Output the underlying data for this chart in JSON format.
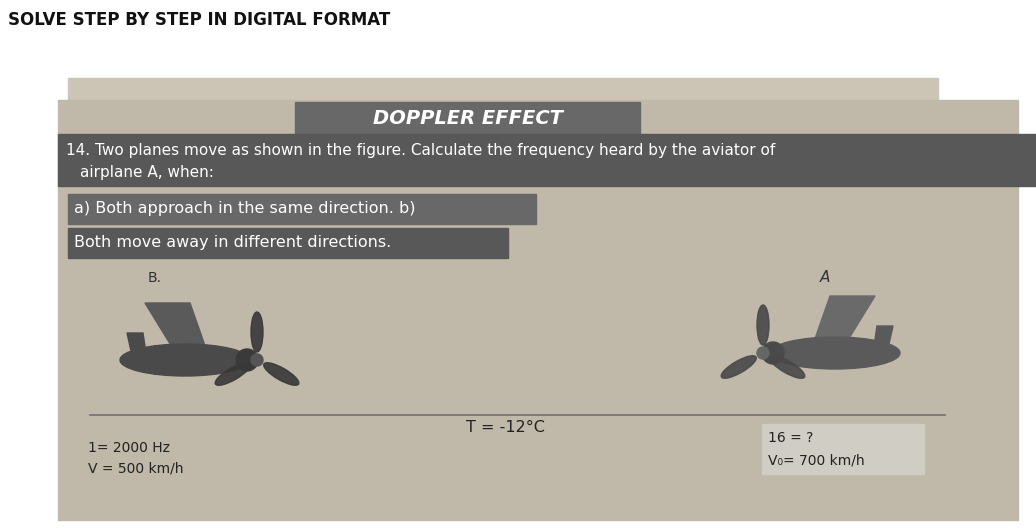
{
  "title_top": "SOLVE STEP BY STEP IN DIGITAL FORMAT",
  "doppler_title": "DOPPLER EFFECT",
  "problem_line1": "14. Two planes move as shown in the figure. Calculate the frequency heard by the aviator of",
  "problem_line2": "airplane A, when:",
  "part_a": "a) Both approach in the same direction. b)",
  "part_b": "Both move away in different directions.",
  "label_B": "B.",
  "label_A": "A",
  "temp_label": "T = -12°C",
  "left_info1": "1= 2000 Hz",
  "left_info2": "V = 500 km/h",
  "right_info1": "16 = ?",
  "right_info2": "V₀= 700 km/h",
  "bg_outer": "#b8b0a0",
  "bg_inner": "#c8c0b0",
  "bg_main": "#c0b8a8",
  "header_bg": "#ffffff",
  "doppler_bar_color": "#686868",
  "problem_bar_color": "#585858",
  "part_a_bar_color": "#686868",
  "part_b_bar_color": "#585858",
  "right_box_color": "#d0cdc5",
  "line_color": "#707070",
  "text_white": "#ffffff",
  "text_dark": "#222222",
  "title_fontsize": 13,
  "problem_fontsize": 11,
  "label_fontsize": 10
}
